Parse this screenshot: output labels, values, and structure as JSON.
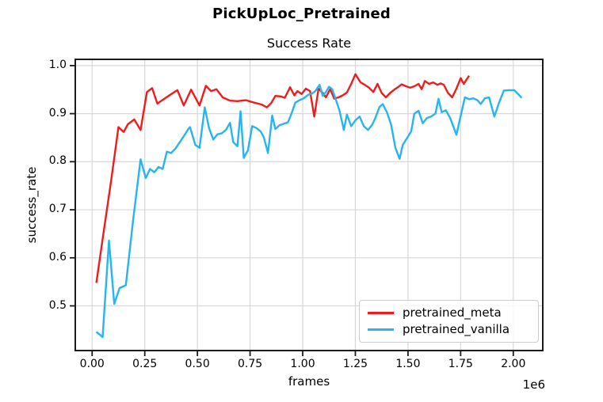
{
  "chart_data": {
    "type": "line",
    "title": "PickUpLoc_Pretrained",
    "subtitle": "Success Rate",
    "xlabel": "frames",
    "ylabel": "success_rate",
    "x_offset_label": "1e6",
    "x_unit_multiplier": 1000000,
    "xlim": [
      -0.08,
      2.14
    ],
    "ylim": [
      0.407,
      1.013
    ],
    "grid": true,
    "grid_color": "#d8d8d8",
    "spine_color": "#1a1a1a",
    "xticks": {
      "values": [
        0,
        0.25,
        0.5,
        0.75,
        1.0,
        1.25,
        1.5,
        1.75,
        2.0
      ],
      "labels": [
        "0.00",
        "0.25",
        "0.50",
        "0.75",
        "1.00",
        "1.25",
        "1.50",
        "1.75",
        "2.00"
      ]
    },
    "yticks": {
      "values": [
        0.5,
        0.6,
        0.7,
        0.8,
        0.9,
        1.0
      ],
      "labels": [
        "0.5",
        "0.6",
        "0.7",
        "0.8",
        "0.9",
        "1.0"
      ]
    },
    "legend": {
      "position": "lower right",
      "entries": [
        {
          "label": "pretrained_meta",
          "color": "#ed1d1d"
        },
        {
          "label": "pretrained_vanilla",
          "color": "#27b4ef"
        }
      ]
    },
    "series": [
      {
        "name": "pretrained_meta",
        "color": "#ed1d1d",
        "x": [
          0.02,
          0.055,
          0.09,
          0.125,
          0.15,
          0.17,
          0.2,
          0.23,
          0.26,
          0.285,
          0.31,
          0.34,
          0.37,
          0.405,
          0.435,
          0.47,
          0.51,
          0.54,
          0.565,
          0.59,
          0.62,
          0.655,
          0.69,
          0.73,
          0.77,
          0.805,
          0.83,
          0.85,
          0.87,
          0.895,
          0.915,
          0.94,
          0.96,
          0.975,
          0.995,
          1.015,
          1.035,
          1.055,
          1.075,
          1.095,
          1.11,
          1.13,
          1.15,
          1.17,
          1.19,
          1.21,
          1.23,
          1.25,
          1.275,
          1.295,
          1.315,
          1.335,
          1.355,
          1.375,
          1.395,
          1.415,
          1.435,
          1.455,
          1.47,
          1.49,
          1.51,
          1.53,
          1.55,
          1.565,
          1.58,
          1.6,
          1.62,
          1.64,
          1.655,
          1.67,
          1.69,
          1.71,
          1.73,
          1.75,
          1.765,
          1.79
        ],
        "y": [
          0.548,
          0.655,
          0.76,
          0.872,
          0.862,
          0.878,
          0.888,
          0.866,
          0.945,
          0.953,
          0.921,
          0.93,
          0.939,
          0.949,
          0.917,
          0.95,
          0.917,
          0.958,
          0.947,
          0.951,
          0.934,
          0.927,
          0.926,
          0.928,
          0.923,
          0.919,
          0.913,
          0.922,
          0.937,
          0.936,
          0.933,
          0.955,
          0.938,
          0.947,
          0.941,
          0.952,
          0.947,
          0.894,
          0.952,
          0.943,
          0.934,
          0.951,
          0.931,
          0.934,
          0.938,
          0.944,
          0.962,
          0.982,
          0.965,
          0.96,
          0.954,
          0.945,
          0.962,
          0.943,
          0.934,
          0.943,
          0.95,
          0.956,
          0.961,
          0.957,
          0.954,
          0.957,
          0.962,
          0.951,
          0.968,
          0.962,
          0.965,
          0.96,
          0.963,
          0.96,
          0.943,
          0.934,
          0.952,
          0.974,
          0.962,
          0.979
        ]
      },
      {
        "name": "pretrained_vanilla",
        "color": "#27b4ef",
        "x": [
          0.02,
          0.05,
          0.08,
          0.105,
          0.13,
          0.16,
          0.195,
          0.23,
          0.255,
          0.275,
          0.295,
          0.315,
          0.335,
          0.355,
          0.375,
          0.395,
          0.415,
          0.435,
          0.455,
          0.465,
          0.49,
          0.51,
          0.535,
          0.555,
          0.575,
          0.595,
          0.615,
          0.635,
          0.655,
          0.67,
          0.69,
          0.705,
          0.72,
          0.74,
          0.76,
          0.78,
          0.8,
          0.815,
          0.835,
          0.855,
          0.87,
          0.89,
          0.91,
          0.93,
          0.945,
          0.965,
          0.985,
          1.005,
          1.025,
          1.045,
          1.06,
          1.08,
          1.095,
          1.11,
          1.125,
          1.14,
          1.16,
          1.175,
          1.195,
          1.21,
          1.23,
          1.25,
          1.27,
          1.29,
          1.31,
          1.33,
          1.345,
          1.365,
          1.38,
          1.4,
          1.42,
          1.44,
          1.46,
          1.475,
          1.495,
          1.515,
          1.53,
          1.55,
          1.57,
          1.59,
          1.61,
          1.63,
          1.645,
          1.66,
          1.68,
          1.7,
          1.73,
          1.77,
          1.79,
          1.81,
          1.83,
          1.845,
          1.865,
          1.885,
          1.91,
          1.93,
          1.955,
          1.98,
          2.005,
          2.04
        ],
        "y": [
          0.446,
          0.435,
          0.636,
          0.504,
          0.537,
          0.543,
          0.68,
          0.805,
          0.766,
          0.785,
          0.778,
          0.789,
          0.785,
          0.821,
          0.818,
          0.827,
          0.84,
          0.853,
          0.867,
          0.872,
          0.835,
          0.829,
          0.913,
          0.87,
          0.846,
          0.857,
          0.859,
          0.866,
          0.881,
          0.841,
          0.832,
          0.905,
          0.808,
          0.824,
          0.874,
          0.87,
          0.863,
          0.851,
          0.818,
          0.896,
          0.868,
          0.876,
          0.879,
          0.882,
          0.898,
          0.923,
          0.928,
          0.932,
          0.939,
          0.942,
          0.947,
          0.96,
          0.937,
          0.945,
          0.956,
          0.951,
          0.926,
          0.906,
          0.866,
          0.898,
          0.874,
          0.886,
          0.894,
          0.874,
          0.866,
          0.877,
          0.891,
          0.914,
          0.92,
          0.903,
          0.877,
          0.829,
          0.806,
          0.835,
          0.849,
          0.863,
          0.9,
          0.906,
          0.88,
          0.891,
          0.894,
          0.9,
          0.931,
          0.903,
          0.907,
          0.891,
          0.856,
          0.934,
          0.93,
          0.932,
          0.928,
          0.92,
          0.932,
          0.934,
          0.894,
          0.92,
          0.948,
          0.949,
          0.949,
          0.933
        ]
      }
    ]
  }
}
